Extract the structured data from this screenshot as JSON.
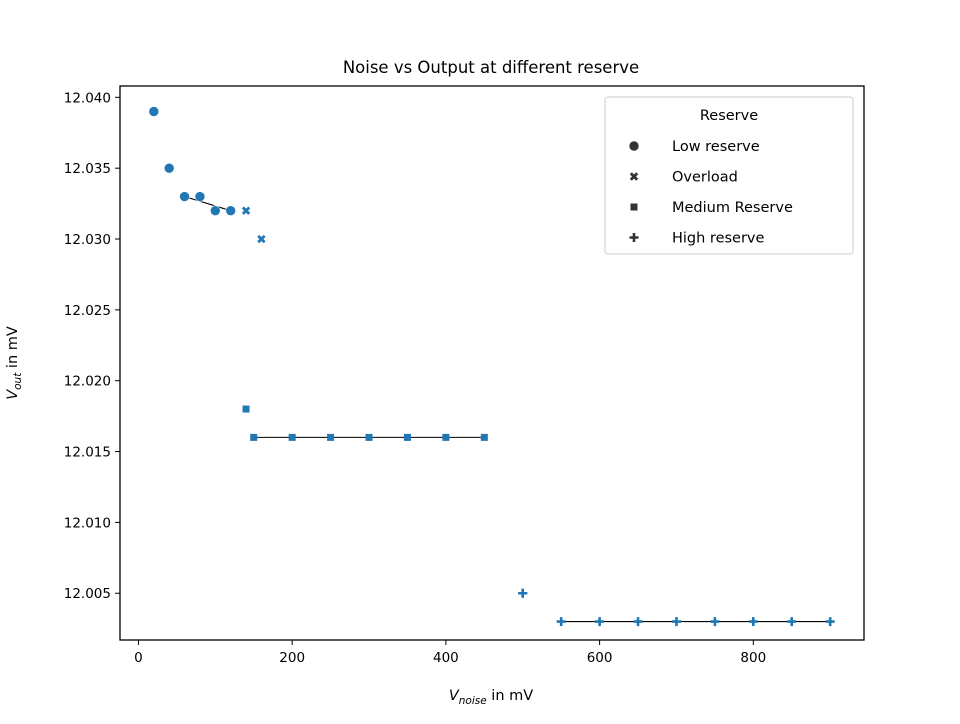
{
  "chart_data": {
    "type": "scatter",
    "title": "Noise vs Output at different reserve",
    "xlabel": {
      "base": "V",
      "sub": "noise",
      "suffix": " in mV"
    },
    "ylabel": {
      "base": "V",
      "sub": "out",
      "suffix": " in mV"
    },
    "xlim": [
      -24,
      944
    ],
    "ylim": [
      12.0017,
      12.0408
    ],
    "xticks": [
      0,
      200,
      400,
      600,
      800
    ],
    "xtick_labels": [
      "0",
      "200",
      "400",
      "600",
      "800"
    ],
    "yticks": [
      12.005,
      12.01,
      12.015,
      12.02,
      12.025,
      12.03,
      12.035,
      12.04
    ],
    "ytick_labels": [
      "12.005",
      "12.010",
      "12.015",
      "12.020",
      "12.025",
      "12.030",
      "12.035",
      "12.040"
    ],
    "grid": false,
    "legend": {
      "title": "Reserve",
      "placement": "top-right",
      "entries": [
        {
          "label": "Low reserve",
          "marker": "circle"
        },
        {
          "label": "Overload",
          "marker": "x"
        },
        {
          "label": "Medium Reserve",
          "marker": "square"
        },
        {
          "label": "High reserve",
          "marker": "plus"
        }
      ]
    },
    "marker_color": "#1f77b4",
    "legend_marker_color": "#333333",
    "line_color": "#000000",
    "series": [
      {
        "name": "Low reserve",
        "marker": "circle",
        "x": [
          20,
          40,
          60,
          80,
          100,
          120
        ],
        "y": [
          12.039,
          12.035,
          12.033,
          12.033,
          12.032,
          12.032
        ]
      },
      {
        "name": "Overload",
        "marker": "x",
        "x": [
          140,
          160
        ],
        "y": [
          12.032,
          12.03
        ]
      },
      {
        "name": "Medium Reserve",
        "marker": "square",
        "x": [
          140,
          150,
          200,
          250,
          300,
          350,
          400,
          450
        ],
        "y": [
          12.018,
          12.016,
          12.016,
          12.016,
          12.016,
          12.016,
          12.016,
          12.016
        ]
      },
      {
        "name": "High reserve",
        "marker": "plus",
        "x": [
          500,
          500,
          550,
          600,
          650,
          700,
          750,
          800,
          850,
          900
        ],
        "y": [
          12.005,
          12.005,
          12.003,
          12.003,
          12.003,
          12.003,
          12.003,
          12.003,
          12.003,
          12.003
        ]
      }
    ],
    "fit_lines": [
      {
        "x": [
          60,
          120
        ],
        "y": [
          12.033,
          12.032
        ]
      },
      {
        "x": [
          150,
          450
        ],
        "y": [
          12.016,
          12.016
        ]
      },
      {
        "x": [
          550,
          900
        ],
        "y": [
          12.003,
          12.003
        ]
      }
    ]
  }
}
